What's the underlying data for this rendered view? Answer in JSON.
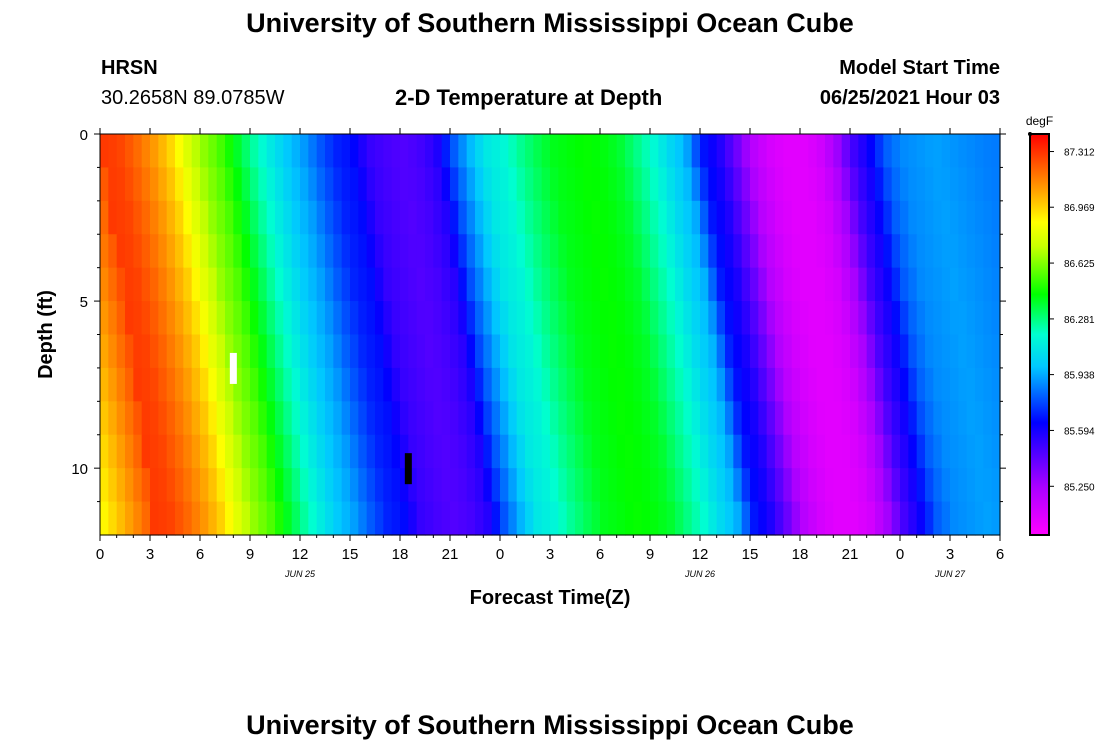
{
  "header": {
    "title": "University of Southern Mississippi Ocean Cube",
    "station": "HRSN",
    "coords": "30.2658N  89.0785W",
    "plot_title": "2-D Temperature at Depth",
    "model_start_label": "Model Start Time",
    "model_start_value": "06/25/2021 Hour 03"
  },
  "footer": {
    "title": "University of Southern Mississippi Ocean Cube"
  },
  "chart_data": {
    "type": "heatmap",
    "title": "2-D Temperature at Depth",
    "xlabel": "Forecast Time(Z)",
    "ylabel": "Depth (ft)",
    "x_ticks": [
      "0",
      "3",
      "6",
      "9",
      "12",
      "15",
      "18",
      "21",
      "0",
      "3",
      "6",
      "9",
      "12",
      "15",
      "18",
      "21",
      "0",
      "3",
      "6"
    ],
    "x_tick_hours": [
      0,
      3,
      6,
      9,
      12,
      15,
      18,
      21,
      24,
      27,
      30,
      33,
      36,
      39,
      42,
      45,
      48,
      51,
      54
    ],
    "date_labels": [
      {
        "label": "JUN 25",
        "hour": 12
      },
      {
        "label": "JUN 26",
        "hour": 36
      },
      {
        "label": "JUN 27",
        "hour": 51
      }
    ],
    "y_ticks": [
      "0",
      "5",
      "10"
    ],
    "y_tick_values": [
      0,
      5,
      10
    ],
    "xlim": [
      0,
      54
    ],
    "ylim": [
      0,
      12
    ],
    "colorbar": {
      "unit": "degF",
      "ticks": [
        "87.312",
        "86.969",
        "86.625",
        "86.281",
        "85.938",
        "85.594",
        "85.250"
      ],
      "tick_values": [
        87.312,
        86.969,
        86.625,
        86.281,
        85.938,
        85.594,
        85.25
      ],
      "range": [
        84.95,
        87.42
      ]
    },
    "markers": [
      {
        "hour": 8,
        "depth": 7,
        "color": "#ffffff"
      },
      {
        "hour": 18.5,
        "depth": 10,
        "color": "#000000"
      }
    ],
    "depth_levels": [
      0.5,
      1.5,
      2.5,
      3.5,
      4.5,
      5.5,
      6.5,
      7.5,
      8.5,
      9.5,
      10.5,
      11.5
    ],
    "time_hours": [
      0,
      1,
      2,
      3,
      4,
      5,
      6,
      7,
      8,
      9,
      10,
      11,
      12,
      13,
      14,
      15,
      16,
      17,
      18,
      19,
      20,
      21,
      22,
      23,
      24,
      25,
      26,
      27,
      28,
      29,
      30,
      31,
      32,
      33,
      34,
      35,
      36,
      37,
      38,
      39,
      40,
      41,
      42,
      43,
      44,
      45,
      46,
      47,
      48,
      49,
      50,
      51,
      52,
      53,
      54
    ],
    "surface_temperature_degF": [
      87.3,
      87.28,
      87.2,
      87.1,
      86.98,
      86.8,
      86.65,
      86.55,
      86.4,
      86.25,
      86.12,
      86.0,
      85.92,
      85.8,
      85.7,
      85.66,
      85.52,
      85.48,
      85.45,
      85.48,
      85.55,
      85.78,
      85.95,
      86.1,
      86.15,
      86.25,
      86.33,
      86.4,
      86.42,
      86.44,
      86.42,
      86.38,
      86.28,
      86.18,
      86.05,
      85.95,
      85.68,
      85.58,
      85.4,
      85.2,
      85.1,
      85.05,
      85.05,
      85.1,
      85.25,
      85.48,
      85.62,
      85.8,
      85.88,
      85.9,
      85.92,
      85.9,
      85.88,
      85.86,
      85.85
    ]
  }
}
